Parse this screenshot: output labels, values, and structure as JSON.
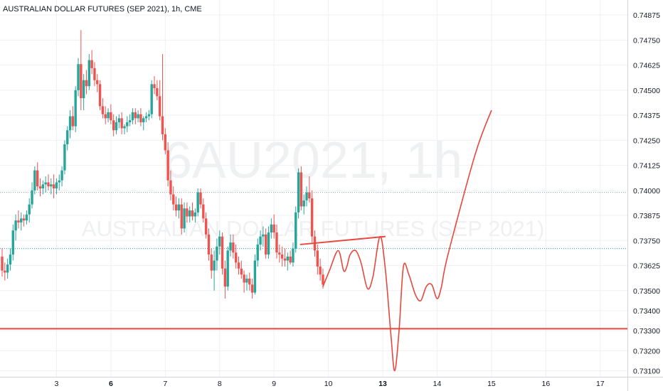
{
  "chart_data": {
    "type": "candlestick",
    "title": "AUSTRALIAN DOLLAR FUTURES (SEP 2021), 1h, CME",
    "watermark": {
      "symbol": "6AU2021, 1h",
      "description": "AUSTRALIAN DOLLAR FUTURES (SEP 2021)"
    },
    "ylim": [
      0.7307,
      0.7495
    ],
    "y_ticks": [
      "0.74875",
      "0.74750",
      "0.74625",
      "0.74500",
      "0.74375",
      "0.74250",
      "0.74125",
      "0.74000",
      "0.73875",
      "0.73750",
      "0.73625",
      "0.73500",
      "0.73400",
      "0.73300",
      "0.73200",
      "0.73100"
    ],
    "x_ticks": [
      {
        "label": "3",
        "x": 0.5,
        "bold": false
      },
      {
        "label": "6",
        "x": 1.5,
        "bold": true
      },
      {
        "label": "7",
        "x": 2.5,
        "bold": false
      },
      {
        "label": "8",
        "x": 3.5,
        "bold": false
      },
      {
        "label": "9",
        "x": 4.5,
        "bold": false
      },
      {
        "label": "10",
        "x": 5.5,
        "bold": false
      },
      {
        "label": "13",
        "x": 6.5,
        "bold": true
      },
      {
        "label": "14",
        "x": 7.5,
        "bold": false
      },
      {
        "label": "15",
        "x": 8.5,
        "bold": false
      },
      {
        "label": "16",
        "x": 9.5,
        "bold": false
      },
      {
        "label": "17",
        "x": 10.5,
        "bold": false
      }
    ],
    "xlim": [
      -0.5,
      11.0
    ],
    "colors": {
      "up": "#26a69a",
      "down": "#ef5350",
      "drawing": "#e8473d",
      "grid": "#eef0f3",
      "axis_text": "#131722",
      "watermark": "#eff0f2"
    },
    "grid": true,
    "candles": [
      [
        -0.5,
        0.7367,
        0.7371,
        0.7357,
        0.736
      ],
      [
        -0.45,
        0.736,
        0.7364,
        0.7355,
        0.7359
      ],
      [
        -0.4,
        0.7359,
        0.7366,
        0.7356,
        0.7363
      ],
      [
        -0.35,
        0.7363,
        0.7371,
        0.736,
        0.7368
      ],
      [
        -0.3,
        0.7368,
        0.7383,
        0.7365,
        0.738
      ],
      [
        -0.25,
        0.738,
        0.7388,
        0.7375,
        0.7385
      ],
      [
        -0.2,
        0.7385,
        0.739,
        0.7381,
        0.7384
      ],
      [
        -0.15,
        0.7384,
        0.7389,
        0.738,
        0.7386
      ],
      [
        -0.1,
        0.7386,
        0.7388,
        0.7382,
        0.7385
      ],
      [
        -0.05,
        0.7385,
        0.739,
        0.7383,
        0.7388
      ],
      [
        0.0,
        0.7388,
        0.7396,
        0.7384,
        0.7393
      ],
      [
        0.05,
        0.7393,
        0.7404,
        0.7391,
        0.74
      ],
      [
        0.1,
        0.74,
        0.7412,
        0.7398,
        0.741
      ],
      [
        0.15,
        0.741,
        0.7414,
        0.74,
        0.7402
      ],
      [
        0.2,
        0.7402,
        0.7406,
        0.7397,
        0.7401
      ],
      [
        0.25,
        0.7401,
        0.7405,
        0.7398,
        0.7403
      ],
      [
        0.3,
        0.7403,
        0.7407,
        0.7399,
        0.7404
      ],
      [
        0.35,
        0.7404,
        0.7408,
        0.74,
        0.7402
      ],
      [
        0.4,
        0.7402,
        0.7406,
        0.7398,
        0.7403
      ],
      [
        0.45,
        0.7403,
        0.7408,
        0.7396,
        0.7401
      ],
      [
        0.5,
        0.7401,
        0.7406,
        0.7398,
        0.7404
      ],
      [
        0.55,
        0.7404,
        0.7408,
        0.74,
        0.7405
      ],
      [
        0.6,
        0.7405,
        0.7412,
        0.7402,
        0.741
      ],
      [
        0.65,
        0.741,
        0.7425,
        0.7408,
        0.7423
      ],
      [
        0.7,
        0.7423,
        0.7432,
        0.742,
        0.743
      ],
      [
        0.75,
        0.743,
        0.744,
        0.7426,
        0.7437
      ],
      [
        0.8,
        0.7437,
        0.7442,
        0.743,
        0.7432
      ],
      [
        0.85,
        0.7432,
        0.7452,
        0.7429,
        0.745
      ],
      [
        0.9,
        0.745,
        0.7466,
        0.7447,
        0.7463
      ],
      [
        0.95,
        0.7463,
        0.748,
        0.744,
        0.7446
      ],
      [
        1.0,
        0.7446,
        0.7458,
        0.744,
        0.7455
      ],
      [
        1.05,
        0.7455,
        0.746,
        0.7448,
        0.7452
      ],
      [
        1.1,
        0.7452,
        0.7468,
        0.745,
        0.7465
      ],
      [
        1.15,
        0.7465,
        0.747,
        0.7458,
        0.7461
      ],
      [
        1.2,
        0.7461,
        0.7464,
        0.7452,
        0.7455
      ],
      [
        1.25,
        0.7455,
        0.7458,
        0.7449,
        0.7453
      ],
      [
        1.3,
        0.7453,
        0.7455,
        0.744,
        0.7442
      ],
      [
        1.35,
        0.7442,
        0.7446,
        0.7436,
        0.7438
      ],
      [
        1.4,
        0.7438,
        0.7442,
        0.7433,
        0.7436
      ],
      [
        1.45,
        0.7436,
        0.7441,
        0.7434,
        0.7439
      ],
      [
        1.5,
        0.7439,
        0.7443,
        0.7433,
        0.7435
      ],
      [
        1.55,
        0.7435,
        0.7438,
        0.7427,
        0.743
      ],
      [
        1.6,
        0.743,
        0.7437,
        0.7428,
        0.7434
      ],
      [
        1.65,
        0.7434,
        0.7438,
        0.7431,
        0.7436
      ],
      [
        1.7,
        0.7436,
        0.7439,
        0.7428,
        0.7431
      ],
      [
        1.75,
        0.7431,
        0.7433,
        0.7428,
        0.7432
      ],
      [
        1.8,
        0.7432,
        0.7437,
        0.7429,
        0.7434
      ],
      [
        1.85,
        0.7434,
        0.7438,
        0.7432,
        0.7435
      ],
      [
        1.9,
        0.7435,
        0.7441,
        0.7433,
        0.7439
      ],
      [
        1.95,
        0.7439,
        0.7441,
        0.7433,
        0.7436
      ],
      [
        2.0,
        0.7436,
        0.744,
        0.7434,
        0.7438
      ],
      [
        2.05,
        0.7438,
        0.7441,
        0.7432,
        0.7434
      ],
      [
        2.1,
        0.7434,
        0.7437,
        0.743,
        0.7436
      ],
      [
        2.15,
        0.7436,
        0.7439,
        0.7434,
        0.7437
      ],
      [
        2.2,
        0.7437,
        0.744,
        0.7435,
        0.7438
      ],
      [
        2.25,
        0.7438,
        0.7455,
        0.7436,
        0.7453
      ],
      [
        2.3,
        0.7453,
        0.7457,
        0.7448,
        0.7451
      ],
      [
        2.35,
        0.7451,
        0.7455,
        0.7445,
        0.7447
      ],
      [
        2.4,
        0.7447,
        0.7455,
        0.7435,
        0.7437
      ],
      [
        2.45,
        0.7437,
        0.7468,
        0.7425,
        0.7428
      ],
      [
        2.5,
        0.7428,
        0.7431,
        0.7418,
        0.742
      ],
      [
        2.55,
        0.742,
        0.7424,
        0.7402,
        0.7405
      ],
      [
        2.6,
        0.7405,
        0.741,
        0.7395,
        0.7398
      ],
      [
        2.65,
        0.7398,
        0.7402,
        0.739,
        0.7393
      ],
      [
        2.7,
        0.7393,
        0.7397,
        0.7387,
        0.739
      ],
      [
        2.75,
        0.739,
        0.7396,
        0.7386,
        0.7393
      ],
      [
        2.8,
        0.7393,
        0.7396,
        0.7378,
        0.7381
      ],
      [
        2.85,
        0.7381,
        0.7394,
        0.7379,
        0.7391
      ],
      [
        2.9,
        0.7391,
        0.7394,
        0.7384,
        0.7387
      ],
      [
        2.95,
        0.7387,
        0.7392,
        0.7384,
        0.739
      ],
      [
        3.0,
        0.739,
        0.7394,
        0.7385,
        0.7387
      ],
      [
        3.05,
        0.7387,
        0.7391,
        0.7384,
        0.7389
      ],
      [
        3.1,
        0.7389,
        0.7401,
        0.7387,
        0.7399
      ],
      [
        3.15,
        0.7399,
        0.7401,
        0.7391,
        0.7393
      ],
      [
        3.2,
        0.7393,
        0.7396,
        0.7384,
        0.7386
      ],
      [
        3.25,
        0.7386,
        0.7389,
        0.7376,
        0.7378
      ],
      [
        3.3,
        0.7378,
        0.7381,
        0.7365,
        0.7368
      ],
      [
        3.35,
        0.7368,
        0.7371,
        0.7356,
        0.736
      ],
      [
        3.4,
        0.736,
        0.737,
        0.735,
        0.7365
      ],
      [
        3.45,
        0.7365,
        0.7376,
        0.736,
        0.7372
      ],
      [
        3.5,
        0.7372,
        0.738,
        0.7368,
        0.7377
      ],
      [
        3.55,
        0.7377,
        0.7379,
        0.7358,
        0.7361
      ],
      [
        3.6,
        0.7361,
        0.7365,
        0.7346,
        0.7352
      ],
      [
        3.65,
        0.7352,
        0.7372,
        0.735,
        0.737
      ],
      [
        3.7,
        0.737,
        0.7378,
        0.7367,
        0.7374
      ],
      [
        3.75,
        0.7374,
        0.7378,
        0.7366,
        0.7369
      ],
      [
        3.8,
        0.7369,
        0.7373,
        0.7361,
        0.7364
      ],
      [
        3.85,
        0.7364,
        0.7367,
        0.7358,
        0.7361
      ],
      [
        3.9,
        0.7361,
        0.7365,
        0.7356,
        0.7358
      ],
      [
        3.95,
        0.7358,
        0.736,
        0.7349,
        0.7354
      ],
      [
        4.0,
        0.7354,
        0.7358,
        0.735,
        0.7356
      ],
      [
        4.05,
        0.7356,
        0.7359,
        0.735,
        0.7353
      ],
      [
        4.1,
        0.7353,
        0.7356,
        0.7346,
        0.7349
      ],
      [
        4.15,
        0.7349,
        0.7368,
        0.7348,
        0.7365
      ],
      [
        4.2,
        0.7365,
        0.7376,
        0.7362,
        0.7373
      ],
      [
        4.25,
        0.7373,
        0.738,
        0.737,
        0.7377
      ],
      [
        4.3,
        0.7377,
        0.7382,
        0.7372,
        0.7378
      ],
      [
        4.35,
        0.7378,
        0.7381,
        0.7366,
        0.7368
      ],
      [
        4.4,
        0.7368,
        0.7382,
        0.7366,
        0.7379
      ],
      [
        4.45,
        0.7379,
        0.7386,
        0.7376,
        0.7383
      ],
      [
        4.5,
        0.7383,
        0.7388,
        0.7376,
        0.7379
      ],
      [
        4.55,
        0.7379,
        0.7383,
        0.7366,
        0.7369
      ],
      [
        4.6,
        0.7369,
        0.7373,
        0.7364,
        0.7368
      ],
      [
        4.65,
        0.7368,
        0.7372,
        0.7362,
        0.7366
      ],
      [
        4.7,
        0.7366,
        0.7371,
        0.7362,
        0.7365
      ],
      [
        4.75,
        0.7365,
        0.7369,
        0.736,
        0.7367
      ],
      [
        4.8,
        0.7367,
        0.737,
        0.7363,
        0.7364
      ],
      [
        4.85,
        0.7364,
        0.7374,
        0.7362,
        0.7371
      ],
      [
        4.9,
        0.7371,
        0.7392,
        0.7369,
        0.7389
      ],
      [
        4.95,
        0.7389,
        0.7411,
        0.7386,
        0.7409
      ],
      [
        5.0,
        0.7409,
        0.7412,
        0.739,
        0.7392
      ],
      [
        5.05,
        0.7392,
        0.7398,
        0.7388,
        0.7395
      ],
      [
        5.1,
        0.7395,
        0.7402,
        0.7392,
        0.7399
      ],
      [
        5.15,
        0.7399,
        0.7407,
        0.7394,
        0.7396
      ],
      [
        5.2,
        0.7396,
        0.74,
        0.7374,
        0.7377
      ],
      [
        5.25,
        0.7377,
        0.738,
        0.7367,
        0.737
      ],
      [
        5.3,
        0.737,
        0.7373,
        0.7358,
        0.7362
      ],
      [
        5.35,
        0.7362,
        0.7366,
        0.7355,
        0.7358
      ],
      [
        5.4,
        0.7358,
        0.7361,
        0.7351,
        0.7353
      ]
    ],
    "projection": [
      [
        5.4,
        0.7352
      ],
      [
        5.52,
        0.736
      ],
      [
        5.68,
        0.737
      ],
      [
        5.78,
        0.736
      ],
      [
        5.84,
        0.7362
      ],
      [
        5.9,
        0.7368
      ],
      [
        6.0,
        0.737
      ],
      [
        6.1,
        0.7364
      ],
      [
        6.22,
        0.7351
      ],
      [
        6.32,
        0.7357
      ],
      [
        6.45,
        0.7377
      ],
      [
        6.55,
        0.736
      ],
      [
        6.65,
        0.7328
      ],
      [
        6.72,
        0.731
      ],
      [
        6.8,
        0.733
      ],
      [
        6.88,
        0.7362
      ],
      [
        6.98,
        0.7358
      ],
      [
        7.1,
        0.7348
      ],
      [
        7.2,
        0.7345
      ],
      [
        7.3,
        0.7352
      ],
      [
        7.4,
        0.7353
      ],
      [
        7.5,
        0.7346
      ],
      [
        7.58,
        0.7352
      ],
      [
        7.7,
        0.7368
      ],
      [
        8.2,
        0.7418
      ],
      [
        8.5,
        0.744
      ]
    ],
    "lines": [
      {
        "name": "trend-line",
        "points": [
          [
            4.98,
            0.7373
          ],
          [
            6.55,
            0.7377
          ]
        ]
      },
      {
        "name": "support-line",
        "price": 0.7331
      }
    ],
    "ref_lines": [
      {
        "name": "dotted-level-upper",
        "price": 0.7399,
        "color": "#9aa1ab"
      },
      {
        "name": "dotted-level-lower",
        "price": 0.7371,
        "color": "#26a69a"
      }
    ]
  }
}
